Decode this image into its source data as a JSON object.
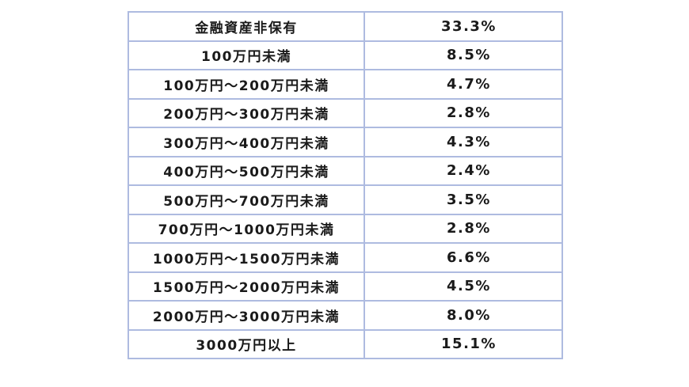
{
  "table": {
    "rows": [
      {
        "label": "金融資産非保有",
        "value": "33.3%"
      },
      {
        "label": "100万円未満",
        "value": "8.5%"
      },
      {
        "label": "100万円～200万円未満",
        "value": "4.7%"
      },
      {
        "label": "200万円～300万円未満",
        "value": "2.8%"
      },
      {
        "label": "300万円～400万円未満",
        "value": "4.3%"
      },
      {
        "label": "400万円～500万円未満",
        "value": "2.4%"
      },
      {
        "label": "500万円～700万円未満",
        "value": "3.5%"
      },
      {
        "label": "700万円～1000万円未満",
        "value": "2.8%"
      },
      {
        "label": "1000万円～1500万円未満",
        "value": "6.6%"
      },
      {
        "label": "1500万円～2000万円未満",
        "value": "4.5%"
      },
      {
        "label": "2000万円～3000万円未満",
        "value": "8.0%"
      },
      {
        "label": "3000万円以上",
        "value": "15.1%"
      }
    ]
  },
  "colors": {
    "border": "#aebbe0",
    "text": "#1a1a1a"
  }
}
